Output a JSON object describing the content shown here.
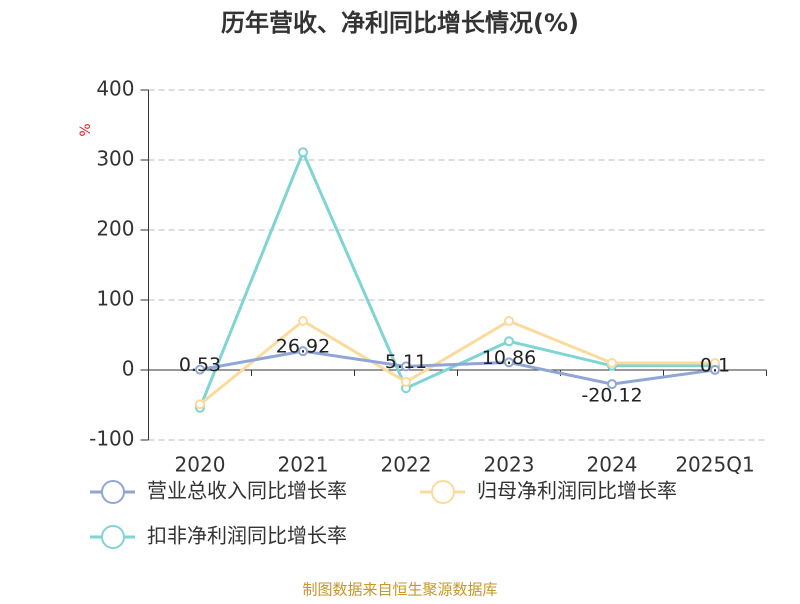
{
  "chart_data": {
    "type": "line",
    "title": "历年营收、净利同比增长情况(%)",
    "y_label": "%",
    "categories": [
      "2020",
      "2021",
      "2022",
      "2023",
      "2024",
      "2025Q1"
    ],
    "series": [
      {
        "name": "营业总收入同比增长率",
        "color": "#8fa6d6",
        "values": [
          0.53,
          26.92,
          5.11,
          10.86,
          -20.12,
          0.1
        ],
        "show_labels": true
      },
      {
        "name": "归母净利润同比增长率",
        "color": "#fbdb9c",
        "values": [
          -49,
          70,
          -17,
          70,
          10,
          10
        ]
      },
      {
        "name": "扣非净利润同比增长率",
        "color": "#7fd4d4",
        "values": [
          -54,
          311,
          -26,
          41,
          6,
          6
        ]
      }
    ],
    "ylim": [
      -100,
      400
    ],
    "yticks": [
      -100,
      0,
      100,
      200,
      300,
      400
    ],
    "grid": true,
    "source": "制图数据来自恒生聚源数据库"
  }
}
